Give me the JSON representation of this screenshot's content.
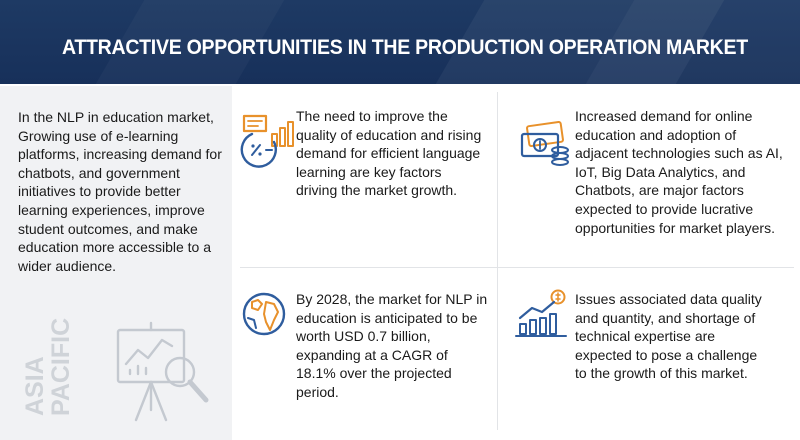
{
  "header": {
    "title": "ATTRACTIVE OPPORTUNITIES IN THE PRODUCTION OPERATION MARKET"
  },
  "left_panel": {
    "text": "In the NLP in education market, Growing use of e-learning platforms, increasing demand for chatbots, and government initiatives to provide better learning experiences, improve student outcomes, and make education more accessible to a wider audience.",
    "region_line1": "ASIA",
    "region_line2": "PACIFIC",
    "icon": "presentation-board-magnifier-icon"
  },
  "cells": {
    "top_left": {
      "icon": "education-chart-icon",
      "text": "The need to improve the quality of education and rising demand for efficient language learning are key factors driving the market growth."
    },
    "top_right": {
      "icon": "money-coins-icon",
      "text": "Increased demand for online education and adoption of adjacent technologies such as AI, IoT, Big Data Analytics, and Chatbots, are major factors expected to provide lucrative opportunities for market players."
    },
    "bottom_left": {
      "icon": "globe-icon",
      "text": "By 2028, the market for NLP in education is anticipated to be worth USD  0.7 billion, expanding at a CAGR of 18.1% over the projected period."
    },
    "bottom_right": {
      "icon": "growth-bar-chart-icon",
      "text": "Issues associated data quality and quantity,   and shortage of technical expertise are expected to pose a challenge to the growth of this market."
    }
  },
  "colors": {
    "header_bg": "#1e3a64",
    "icon_blue": "#2f5d9e",
    "icon_orange": "#e8912b",
    "panel_bg": "#f1f2f4"
  }
}
